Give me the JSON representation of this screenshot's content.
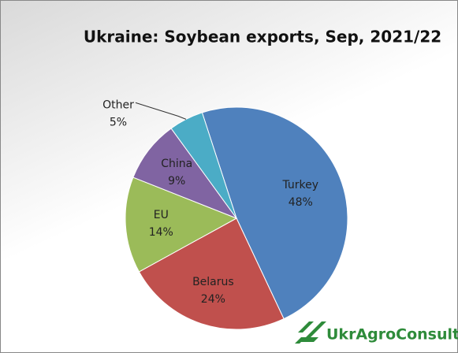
{
  "chart_data": {
    "type": "pie",
    "title": "Ukraine: Soybean exports, Sep, 2021/22",
    "categories": [
      "Turkey",
      "Belarus",
      "EU",
      "China",
      "Other"
    ],
    "values": [
      48,
      24,
      14,
      9,
      5
    ],
    "value_labels": [
      "48%",
      "24%",
      "14%",
      "9%",
      "5%"
    ],
    "colors": [
      "#4f81bd",
      "#c0504d",
      "#9bbb59",
      "#8064a2",
      "#4bacc6"
    ],
    "logo": "UkrAgroConsult"
  }
}
